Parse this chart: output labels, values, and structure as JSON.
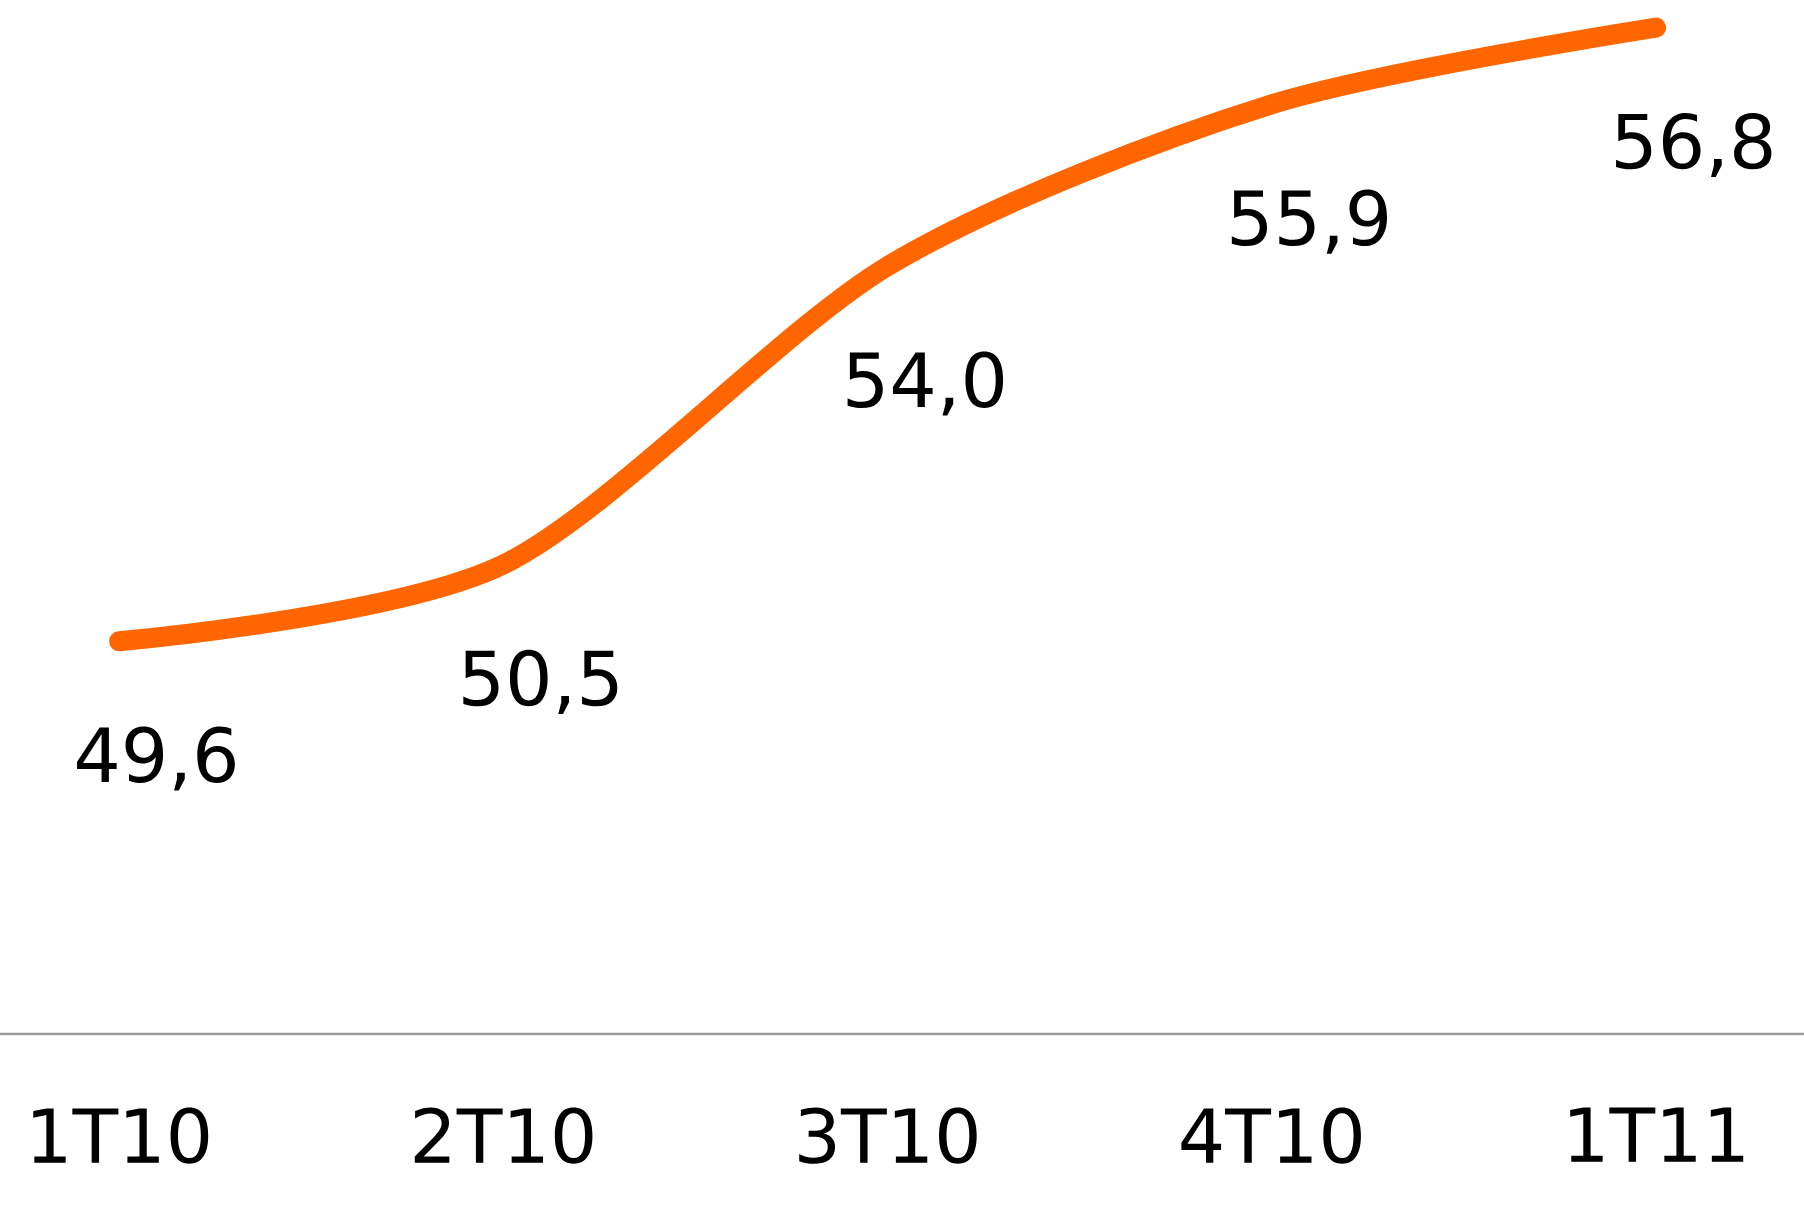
{
  "chart_data": {
    "type": "line",
    "categories": [
      "1T10",
      "2T10",
      "3T10",
      "4T10",
      "1T11"
    ],
    "series": [
      {
        "color": "#ff6600",
        "values": [
          49.6,
          50.5,
          54.0,
          55.9,
          56.8
        ],
        "value_labels": [
          "49,6",
          "50,5",
          "54,0",
          "55,9",
          "56,8"
        ]
      }
    ],
    "tick_labels": "x",
    "marker": "none",
    "line_style": "solid"
  }
}
